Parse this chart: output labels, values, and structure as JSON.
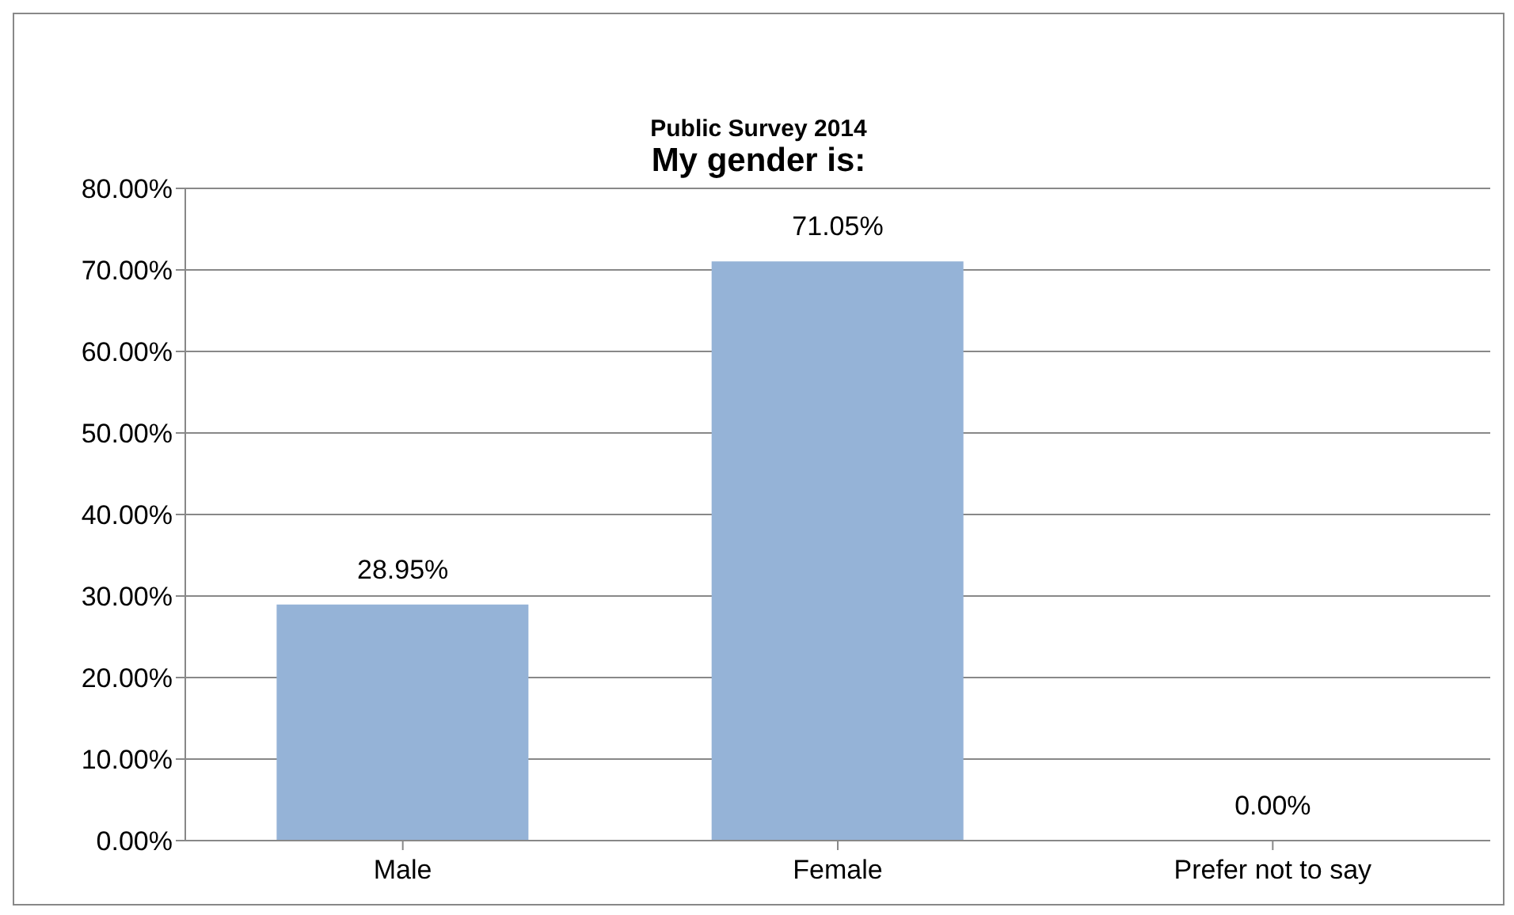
{
  "chart_data": {
    "type": "bar",
    "subtitle": "Public Survey 2014",
    "title": "My gender is:",
    "categories": [
      "Male",
      "Female",
      "Prefer not to say"
    ],
    "values": [
      28.95,
      71.05,
      0
    ],
    "value_labels": [
      "28.95%",
      "71.05%",
      "0.00%"
    ],
    "color": "#95b3d7",
    "ylim": [
      0,
      80
    ],
    "yticks": [
      {
        "value": 0,
        "label": "0.00%"
      },
      {
        "value": 10,
        "label": "10.00%"
      },
      {
        "value": 20,
        "label": "20.00%"
      },
      {
        "value": 30,
        "label": "30.00%"
      },
      {
        "value": 40,
        "label": "40.00%"
      },
      {
        "value": 50,
        "label": "50.00%"
      },
      {
        "value": 60,
        "label": "60.00%"
      },
      {
        "value": 70,
        "label": "70.00%"
      },
      {
        "value": 80,
        "label": "80.00%"
      }
    ],
    "grid": "y",
    "legend": false
  }
}
